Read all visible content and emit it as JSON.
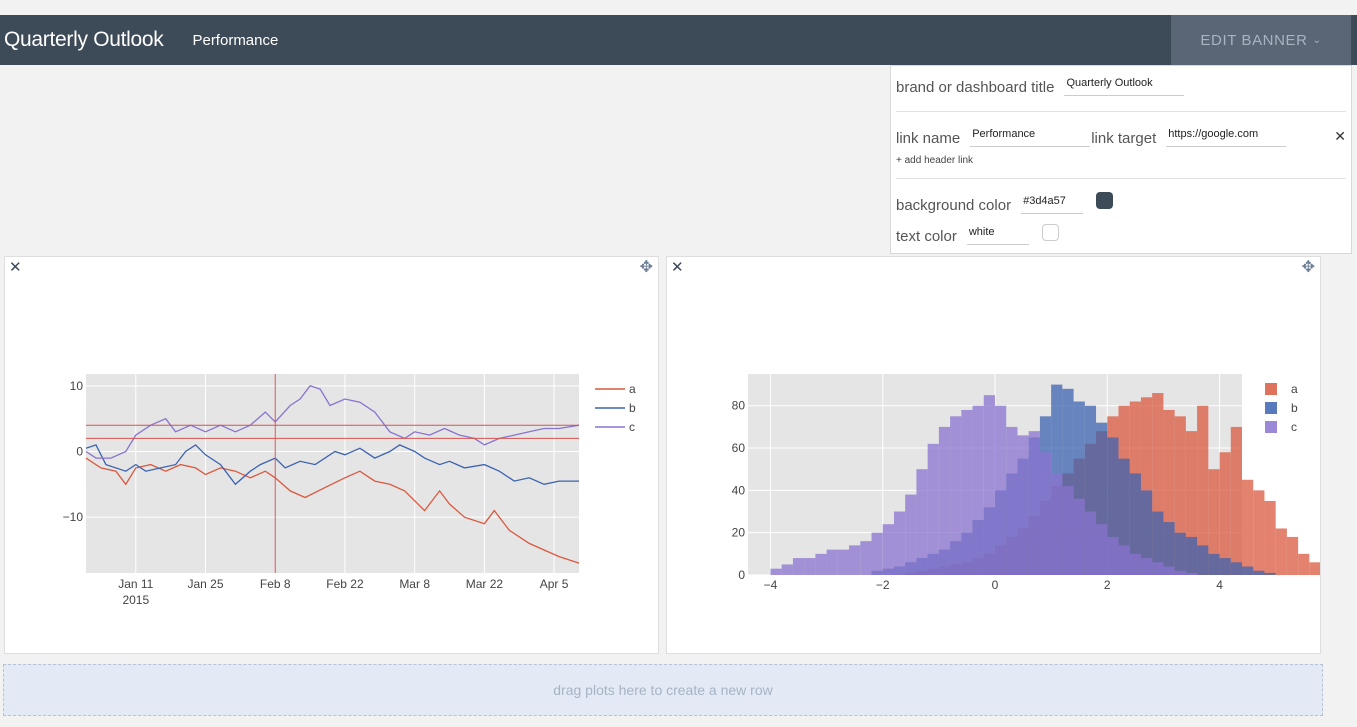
{
  "banner": {
    "title": "Quarterly Outlook",
    "link": "Performance",
    "edit_label": "EDIT BANNER",
    "edit_caret": "⌄",
    "background_color": "#3d4a57",
    "text_color": "white"
  },
  "editor": {
    "brand_label": "brand or dashboard title",
    "brand_value": "Quarterly Outlook",
    "link_name_label": "link name",
    "link_name_value": "Performance",
    "link_target_label": "link target",
    "link_target_value": "https://google.com",
    "remove_icon": "✕",
    "add_link": "+ add header link",
    "bg_label": "background color",
    "bg_value": "#3d4a57",
    "text_label": "text color",
    "text_value": "white"
  },
  "panels": {
    "close_icon": "✕",
    "move_icon": "✥"
  },
  "dropzone": {
    "text": "drag plots here to create a new row"
  },
  "chart_data": [
    {
      "type": "line",
      "x_range": [
        "2015-01-01",
        "2015-04-10"
      ],
      "x_ticks": [
        {
          "date": "2015-01-11",
          "label": "Jan 11",
          "sub": "2015"
        },
        {
          "date": "2015-01-25",
          "label": "Jan 25",
          "sub": ""
        },
        {
          "date": "2015-02-08",
          "label": "Feb 8",
          "sub": ""
        },
        {
          "date": "2015-02-22",
          "label": "Feb 22",
          "sub": ""
        },
        {
          "date": "2015-03-08",
          "label": "Mar 8",
          "sub": ""
        },
        {
          "date": "2015-03-22",
          "label": "Mar 22",
          "sub": ""
        },
        {
          "date": "2015-04-05",
          "label": "Apr 5",
          "sub": ""
        }
      ],
      "ylim": [
        -18.5,
        11.8
      ],
      "y_ticks": [
        {
          "v": 10,
          "label": "10"
        },
        {
          "v": 0,
          "label": "0"
        },
        {
          "v": -10,
          "label": "−10"
        }
      ],
      "grid": true,
      "legend_position": "right",
      "shapes": {
        "vline_date": "2015-02-08",
        "hlines": [
          4,
          2
        ],
        "color": "#d9534f"
      },
      "series": [
        {
          "name": "a",
          "color": "#d9593f",
          "points": [
            [
              "2015-01-01",
              -1
            ],
            [
              "2015-01-04",
              -2.5
            ],
            [
              "2015-01-07",
              -3
            ],
            [
              "2015-01-09",
              -5
            ],
            [
              "2015-01-11",
              -2.5
            ],
            [
              "2015-01-14",
              -2
            ],
            [
              "2015-01-17",
              -3
            ],
            [
              "2015-01-20",
              -2
            ],
            [
              "2015-01-23",
              -2.5
            ],
            [
              "2015-01-25",
              -3.5
            ],
            [
              "2015-01-28",
              -2.5
            ],
            [
              "2015-01-31",
              -3
            ],
            [
              "2015-02-03",
              -4
            ],
            [
              "2015-02-06",
              -3
            ],
            [
              "2015-02-08",
              -4
            ],
            [
              "2015-02-11",
              -6
            ],
            [
              "2015-02-14",
              -7
            ],
            [
              "2015-02-18",
              -5.5
            ],
            [
              "2015-02-22",
              -4
            ],
            [
              "2015-02-25",
              -3
            ],
            [
              "2015-02-28",
              -4.5
            ],
            [
              "2015-03-03",
              -5
            ],
            [
              "2015-03-06",
              -6
            ],
            [
              "2015-03-08",
              -7.5
            ],
            [
              "2015-03-10",
              -9
            ],
            [
              "2015-03-13",
              -6
            ],
            [
              "2015-03-15",
              -8
            ],
            [
              "2015-03-18",
              -10
            ],
            [
              "2015-03-22",
              -11
            ],
            [
              "2015-03-24",
              -9
            ],
            [
              "2015-03-27",
              -12
            ],
            [
              "2015-03-31",
              -14
            ],
            [
              "2015-04-03",
              -15
            ],
            [
              "2015-04-06",
              -16
            ],
            [
              "2015-04-10",
              -17
            ]
          ]
        },
        {
          "name": "b",
          "color": "#3c63b0",
          "points": [
            [
              "2015-01-01",
              0.5
            ],
            [
              "2015-01-03",
              1
            ],
            [
              "2015-01-05",
              -2
            ],
            [
              "2015-01-09",
              -3
            ],
            [
              "2015-01-11",
              -2
            ],
            [
              "2015-01-13",
              -3
            ],
            [
              "2015-01-16",
              -2.5
            ],
            [
              "2015-01-19",
              -2
            ],
            [
              "2015-01-21",
              0
            ],
            [
              "2015-01-23",
              1
            ],
            [
              "2015-01-25",
              -0.5
            ],
            [
              "2015-01-28",
              -2
            ],
            [
              "2015-01-31",
              -5
            ],
            [
              "2015-02-03",
              -3
            ],
            [
              "2015-02-05",
              -2
            ],
            [
              "2015-02-08",
              -1
            ],
            [
              "2015-02-10",
              -2.5
            ],
            [
              "2015-02-13",
              -1.5
            ],
            [
              "2015-02-16",
              -2
            ],
            [
              "2015-02-20",
              0
            ],
            [
              "2015-02-22",
              -0.5
            ],
            [
              "2015-02-25",
              0.5
            ],
            [
              "2015-02-28",
              -1
            ],
            [
              "2015-03-03",
              0
            ],
            [
              "2015-03-05",
              1
            ],
            [
              "2015-03-08",
              0
            ],
            [
              "2015-03-10",
              -1
            ],
            [
              "2015-03-13",
              -2
            ],
            [
              "2015-03-15",
              -1.5
            ],
            [
              "2015-03-18",
              -2.5
            ],
            [
              "2015-03-22",
              -2
            ],
            [
              "2015-03-25",
              -3
            ],
            [
              "2015-03-28",
              -4.5
            ],
            [
              "2015-03-31",
              -4
            ],
            [
              "2015-04-03",
              -5
            ],
            [
              "2015-04-06",
              -4.5
            ],
            [
              "2015-04-10",
              -4.5
            ]
          ]
        },
        {
          "name": "c",
          "color": "#8a73cf",
          "points": [
            [
              "2015-01-01",
              0
            ],
            [
              "2015-01-03",
              -1
            ],
            [
              "2015-01-06",
              -1
            ],
            [
              "2015-01-09",
              0
            ],
            [
              "2015-01-11",
              2.5
            ],
            [
              "2015-01-14",
              4
            ],
            [
              "2015-01-17",
              5
            ],
            [
              "2015-01-19",
              3
            ],
            [
              "2015-01-22",
              4
            ],
            [
              "2015-01-25",
              3
            ],
            [
              "2015-01-28",
              4
            ],
            [
              "2015-01-31",
              3
            ],
            [
              "2015-02-03",
              4
            ],
            [
              "2015-02-06",
              6
            ],
            [
              "2015-02-08",
              4.5
            ],
            [
              "2015-02-11",
              7
            ],
            [
              "2015-02-13",
              8
            ],
            [
              "2015-02-15",
              10
            ],
            [
              "2015-02-17",
              9.5
            ],
            [
              "2015-02-19",
              7
            ],
            [
              "2015-02-22",
              8
            ],
            [
              "2015-02-25",
              7.5
            ],
            [
              "2015-02-28",
              6
            ],
            [
              "2015-03-03",
              3
            ],
            [
              "2015-03-06",
              2
            ],
            [
              "2015-03-08",
              3
            ],
            [
              "2015-03-11",
              2.5
            ],
            [
              "2015-03-14",
              3.5
            ],
            [
              "2015-03-17",
              2.5
            ],
            [
              "2015-03-20",
              2
            ],
            [
              "2015-03-22",
              1
            ],
            [
              "2015-03-25",
              2
            ],
            [
              "2015-03-28",
              2.5
            ],
            [
              "2015-03-31",
              3
            ],
            [
              "2015-04-03",
              3.5
            ],
            [
              "2015-04-06",
              3.5
            ],
            [
              "2015-04-10",
              4
            ]
          ]
        }
      ]
    },
    {
      "type": "bar",
      "barmode": "overlay",
      "xlim": [
        -4.4,
        4.4
      ],
      "ylim": [
        0,
        95
      ],
      "x_ticks": [
        {
          "v": -4,
          "label": "−4"
        },
        {
          "v": -2,
          "label": "−2"
        },
        {
          "v": 0,
          "label": "0"
        },
        {
          "v": 2,
          "label": "2"
        },
        {
          "v": 4,
          "label": "4"
        }
      ],
      "y_ticks": [
        {
          "v": 0,
          "label": "0"
        },
        {
          "v": 20,
          "label": "20"
        },
        {
          "v": 40,
          "label": "40"
        },
        {
          "v": 60,
          "label": "60"
        },
        {
          "v": 80,
          "label": "80"
        }
      ],
      "grid": true,
      "legend_position": "right",
      "bin_width": 0.2,
      "series": [
        {
          "name": "a",
          "color": "#d9593f",
          "start": -1.6,
          "values": [
            1,
            2,
            3,
            4,
            5,
            6,
            8,
            10,
            14,
            18,
            22,
            28,
            35,
            42,
            48,
            55,
            62,
            68,
            75,
            80,
            82,
            84,
            86,
            78,
            75,
            68,
            80,
            50,
            58,
            70,
            45,
            40,
            35,
            22,
            18,
            10,
            6,
            3,
            1,
            1,
            2,
            0,
            5,
            1,
            1
          ]
        },
        {
          "name": "b",
          "color": "#3c63b0",
          "start": -2.2,
          "values": [
            2,
            3,
            4,
            6,
            8,
            10,
            12,
            16,
            20,
            26,
            32,
            40,
            48,
            55,
            65,
            75,
            90,
            88,
            82,
            80,
            72,
            65,
            55,
            48,
            40,
            30,
            25,
            20,
            18,
            14,
            10,
            8,
            6,
            4,
            2,
            1
          ]
        },
        {
          "name": "c",
          "color": "#8a73cf",
          "start": -4.0,
          "values": [
            3,
            5,
            8,
            8,
            10,
            12,
            12,
            14,
            16,
            20,
            24,
            30,
            38,
            50,
            62,
            70,
            75,
            78,
            80,
            85,
            80,
            70,
            66,
            68,
            58,
            48,
            42,
            36,
            30,
            24,
            18,
            14,
            10,
            8,
            6,
            4,
            2,
            1
          ]
        }
      ]
    }
  ]
}
